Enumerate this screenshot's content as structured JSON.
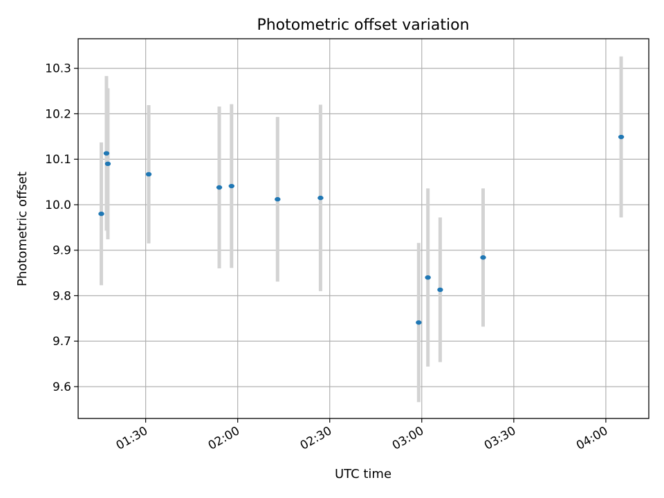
{
  "chart_data": {
    "type": "scatter",
    "title": "Photometric offset variation",
    "xlabel": "UTC time",
    "ylabel": "Photometric offset",
    "x_ticks": [
      "01:30",
      "02:00",
      "02:30",
      "03:00",
      "03:30",
      "04:00"
    ],
    "y_ticks": [
      "9.6",
      "9.7",
      "9.8",
      "9.9",
      "10.0",
      "10.1",
      "10.2",
      "10.3"
    ],
    "xlim": [
      "01:08",
      "04:14"
    ],
    "ylim": [
      9.53,
      10.365
    ],
    "grid": true,
    "colors": {
      "marker": "#1f77b4",
      "errorbar": "#d3d3d3",
      "grid": "#b0b0b0"
    },
    "series": [
      {
        "points": [
          {
            "x": "01:16",
            "y": 9.98,
            "yerr": 0.157
          },
          {
            "x": "01:17",
            "y": 10.113,
            "yerr": 0.17
          },
          {
            "x": "01:17",
            "y": 10.09,
            "yerr": 0.166
          },
          {
            "x": "01:31",
            "y": 10.067,
            "yerr": 0.152
          },
          {
            "x": "01:54",
            "y": 10.038,
            "yerr": 0.178
          },
          {
            "x": "01:58",
            "y": 10.041,
            "yerr": 0.18
          },
          {
            "x": "02:13",
            "y": 10.012,
            "yerr": 0.181
          },
          {
            "x": "02:27",
            "y": 10.015,
            "yerr": 0.205
          },
          {
            "x": "02:59",
            "y": 9.741,
            "yerr": 0.175
          },
          {
            "x": "03:02",
            "y": 9.84,
            "yerr": 0.196
          },
          {
            "x": "03:06",
            "y": 9.813,
            "yerr": 0.159
          },
          {
            "x": "03:20",
            "y": 9.884,
            "yerr": 0.152
          },
          {
            "x": "04:05",
            "y": 10.149,
            "yerr": 0.177
          }
        ]
      }
    ]
  }
}
